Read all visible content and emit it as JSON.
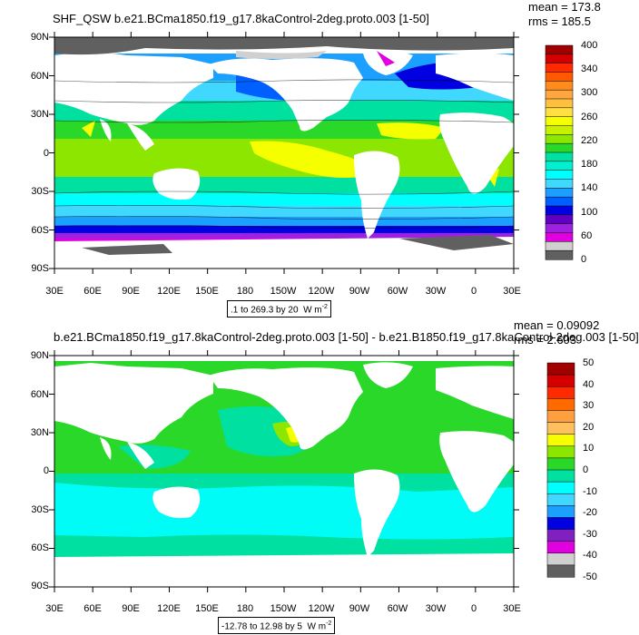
{
  "panels": [
    {
      "title": "SHF_QSW b.e21.BCma1850.f19_g17.8kaControl-2deg.proto.003 [1-50]",
      "mean_text": "mean = 173.8",
      "rms_text": "rms = 185.5",
      "contour_info": ".1 to 269.3 by 20",
      "units": "W m",
      "units_exp": "-2",
      "lat_labels": [
        "90N",
        "60N",
        "30N",
        "0",
        "30S",
        "60S",
        "90S"
      ],
      "lon_labels": [
        "30E",
        "60E",
        "90E",
        "120E",
        "150E",
        "180",
        "150W",
        "120W",
        "90W",
        "60W",
        "30W",
        "0",
        "30E"
      ],
      "colorbar": {
        "labels": [
          "400",
          "340",
          "300",
          "260",
          "220",
          "180",
          "140",
          "100",
          "60",
          "0"
        ],
        "colors": [
          "#a00000",
          "#d40000",
          "#ff2a00",
          "#ff5a00",
          "#ff8c1a",
          "#ffa640",
          "#ffc040",
          "#ffe040",
          "#f5ff00",
          "#c8f000",
          "#8ce600",
          "#2ad82a",
          "#00e0a0",
          "#00f0d0",
          "#00ffff",
          "#40d8ff",
          "#1ca0ff",
          "#0060ff",
          "#0000e0",
          "#6000c0",
          "#a020e0",
          "#e000e0",
          "#d0d0d0",
          "#606060"
        ]
      }
    },
    {
      "title": "b.e21.BCma1850.f19_g17.8kaControl-2deg.proto.003 [1-50] - b.e21.B1850.f19_g17.8kaControl-2deg.003 [1-50]",
      "mean_text": "mean = 0.09092",
      "rms_text": "rms = 2.603",
      "contour_info": "-12.78 to 12.98 by 5",
      "units": "W m",
      "units_exp": "-2",
      "lat_labels": [
        "90N",
        "60N",
        "30N",
        "0",
        "30S",
        "60S",
        "90S"
      ],
      "lon_labels": [
        "30E",
        "60E",
        "90E",
        "120E",
        "150E",
        "180",
        "150W",
        "120W",
        "90W",
        "60W",
        "30W",
        "0",
        "30E"
      ],
      "colorbar": {
        "labels": [
          "50",
          "40",
          "30",
          "20",
          "10",
          "0",
          "-10",
          "-20",
          "-30",
          "-40",
          "-50"
        ],
        "colors": [
          "#a00000",
          "#d40000",
          "#ff2a00",
          "#ff6a00",
          "#ffa040",
          "#ffc060",
          "#f5ff00",
          "#8ce600",
          "#2ad82a",
          "#00e0a0",
          "#00ffff",
          "#40d8ff",
          "#1ca0ff",
          "#0000e0",
          "#8020c0",
          "#e000e0",
          "#d0d0d0",
          "#606060"
        ]
      }
    }
  ]
}
